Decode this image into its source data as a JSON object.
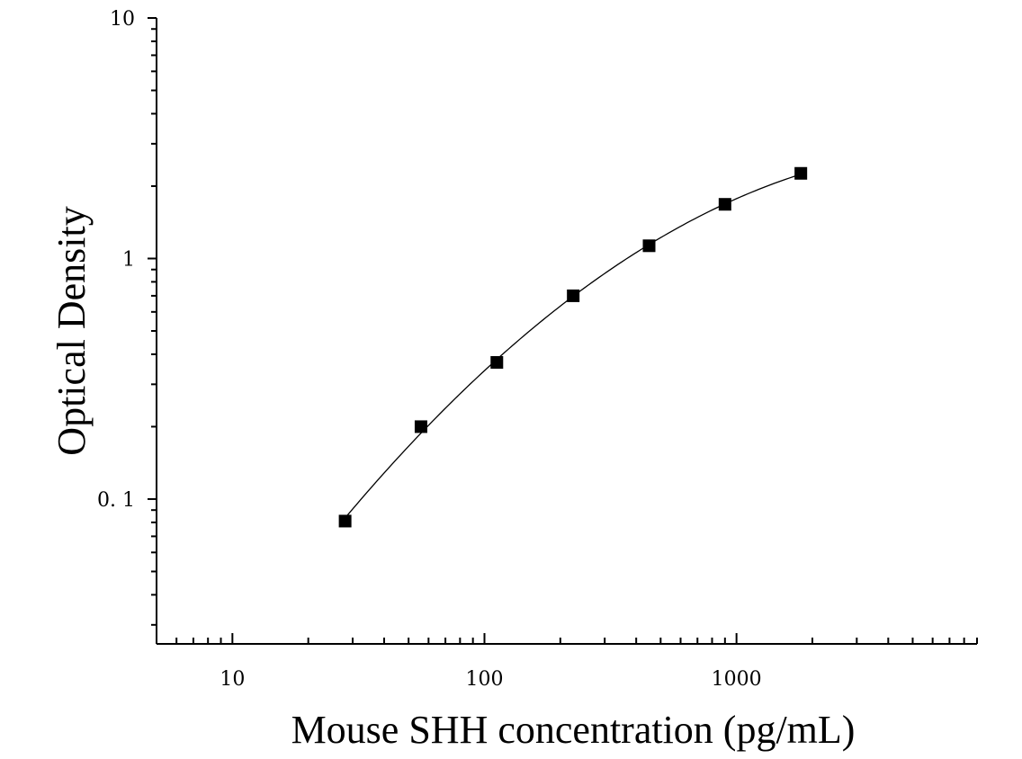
{
  "chart_data": {
    "type": "scatter",
    "title": "",
    "xlabel": "Mouse SHH concentration (pg/mL)",
    "ylabel": "Optical Density",
    "xscale": "log",
    "yscale": "log",
    "xlim": [
      5,
      9000
    ],
    "ylim": [
      0.025,
      10
    ],
    "x_ticks": [
      {
        "value": 10,
        "label": "10"
      },
      {
        "value": 100,
        "label": "100"
      },
      {
        "value": 1000,
        "label": "1000"
      }
    ],
    "y_ticks": [
      {
        "value": 10,
        "label": "10"
      },
      {
        "value": 1,
        "label": "1"
      },
      {
        "value": 0.1,
        "label": "0. 1"
      }
    ],
    "grid": false,
    "legend": "none",
    "marker": "square",
    "color": "#000000",
    "series": [
      {
        "x": [
          28,
          56,
          112,
          225,
          450,
          900,
          1800
        ],
        "y": [
          0.081,
          0.2,
          0.37,
          0.7,
          1.13,
          1.68,
          2.26
        ]
      }
    ],
    "fit_curve": true
  }
}
